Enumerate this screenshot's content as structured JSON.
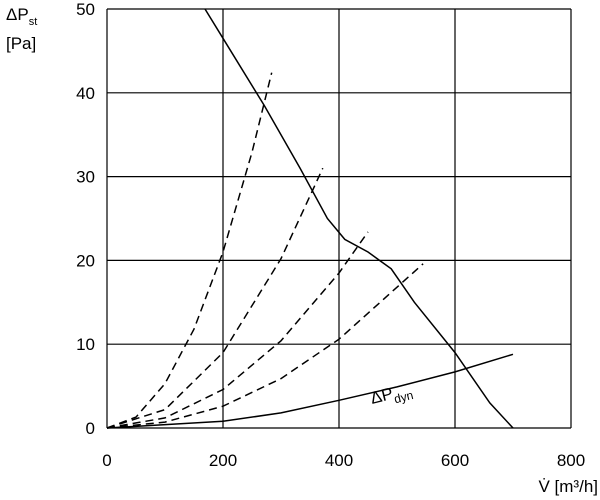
{
  "chart_data": {
    "type": "line",
    "y_label": {
      "main": "ΔP",
      "sub": "st",
      "unit": "[Pa]"
    },
    "x_label": "V̇ [m³/h]",
    "annotation": {
      "main": "ΔP",
      "sub": "dyn"
    },
    "xlim": [
      0,
      800
    ],
    "xticks": [
      0,
      200,
      400,
      600,
      800
    ],
    "ylim": [
      0,
      50
    ],
    "yticks": [
      0,
      10,
      20,
      30,
      40,
      50
    ],
    "grid": true,
    "series": [
      {
        "color": "#000000",
        "style": "solid",
        "x": [
          169,
          200,
          271,
          333,
          380,
          410,
          450,
          490,
          530,
          600,
          660,
          700
        ],
        "values": [
          50,
          46.5,
          38.5,
          31,
          25,
          22.5,
          21,
          19,
          15,
          9,
          3,
          0
        ]
      },
      {
        "color": "#000000",
        "style": "solid",
        "x": [
          0,
          200,
          300,
          400,
          500,
          600,
          700
        ],
        "values": [
          0,
          0.8,
          1.8,
          3.3,
          4.9,
          6.7,
          8.8
        ]
      },
      {
        "color": "#000000",
        "style": "dashed",
        "x": [
          0,
          50,
          100,
          150,
          200,
          250,
          284
        ],
        "values": [
          0,
          1.3,
          5.3,
          11.8,
          21.0,
          32.9,
          42.4
        ]
      },
      {
        "color": "#000000",
        "style": "dashed",
        "x": [
          0,
          100,
          200,
          300,
          372
        ],
        "values": [
          0,
          2.2,
          9.0,
          20.2,
          31
        ]
      },
      {
        "color": "#000000",
        "style": "dashed",
        "x": [
          0,
          100,
          200,
          300,
          400,
          450
        ],
        "values": [
          0,
          1.2,
          4.6,
          10.4,
          18.5,
          23.4
        ]
      },
      {
        "color": "#000000",
        "style": "dashed",
        "x": [
          0,
          100,
          200,
          300,
          400,
          545
        ],
        "values": [
          0,
          0.7,
          2.6,
          5.9,
          10.6,
          19.6
        ]
      }
    ]
  }
}
